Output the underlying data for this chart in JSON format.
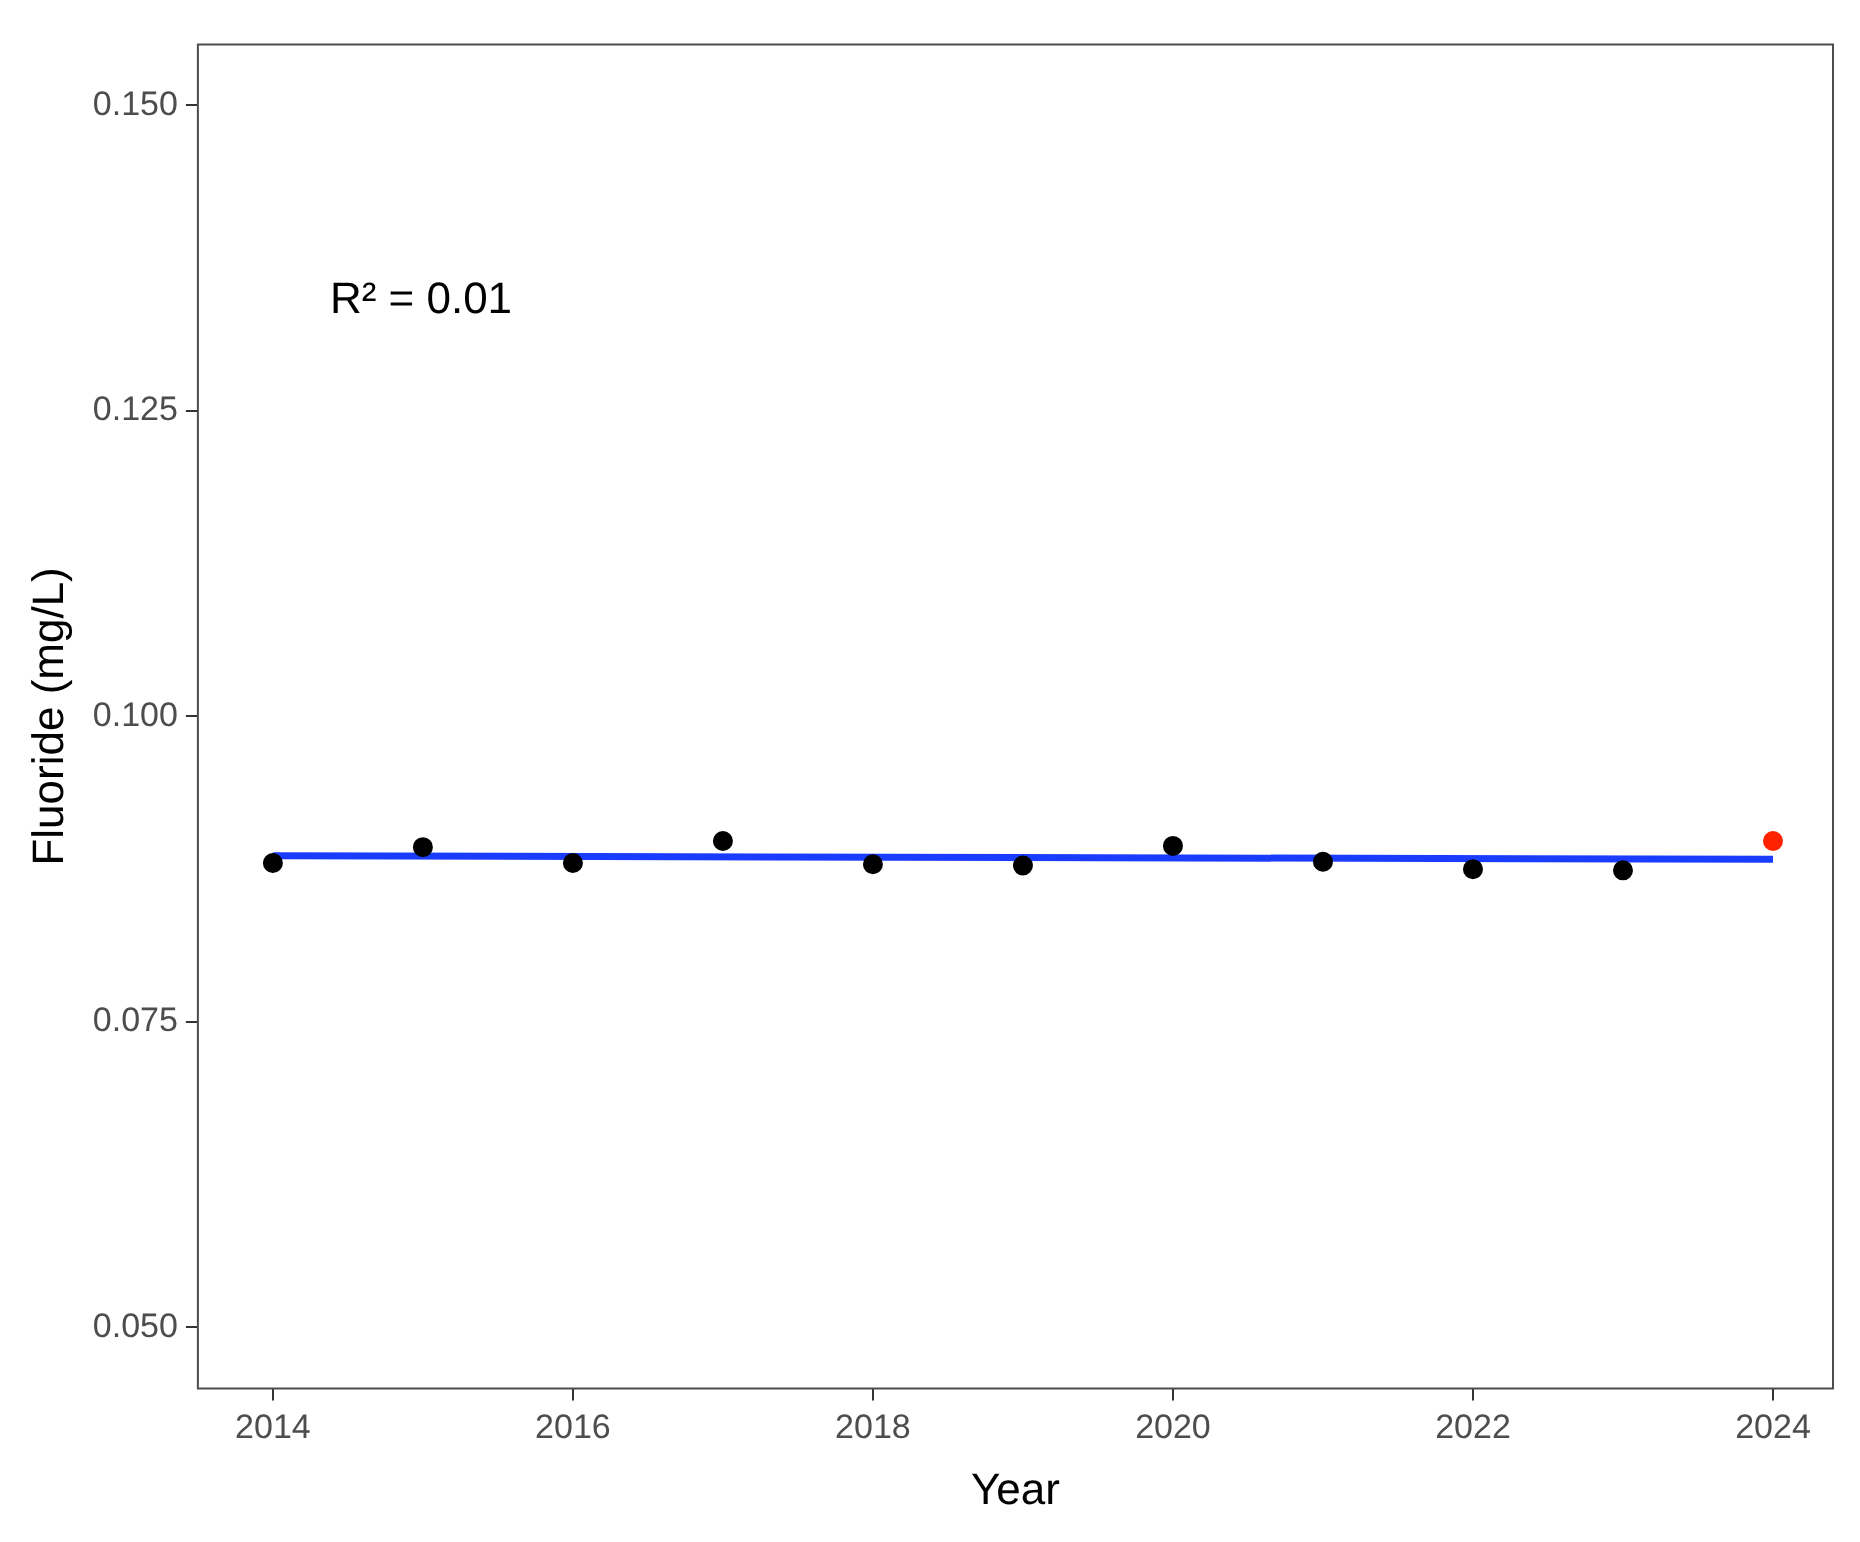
{
  "chart_data": {
    "type": "scatter",
    "xlabel": "Year",
    "ylabel": "Fluoride (mg/L)",
    "annotations": [
      "R² = 0.01"
    ],
    "xlim": [
      2013.5,
      2024.4
    ],
    "ylim": [
      0.045,
      0.155
    ],
    "xticks": [
      2014,
      2016,
      2018,
      2020,
      2022,
      2024
    ],
    "yticks": [
      {
        "value": 0.05,
        "label": "0.050"
      },
      {
        "value": 0.075,
        "label": "0.075"
      },
      {
        "value": 0.1,
        "label": "0.100"
      },
      {
        "value": 0.125,
        "label": "0.125"
      },
      {
        "value": 0.15,
        "label": "0.150"
      }
    ],
    "grid": false,
    "legend": false,
    "series": [
      {
        "marker": "circle",
        "color": "#000000",
        "x": [
          2014,
          2015,
          2016,
          2017,
          2018,
          2019,
          2020,
          2021,
          2022,
          2023
        ],
        "values": [
          0.088,
          0.0893,
          0.088,
          0.0898,
          0.0879,
          0.0878,
          0.0894,
          0.0881,
          0.0875,
          0.0874
        ]
      },
      {
        "marker": "circle",
        "color": "#ff2200",
        "x": [
          2024
        ],
        "values": [
          0.0898
        ]
      },
      {
        "type": "line",
        "marker": "none",
        "color": "#1a3cff",
        "x": [
          2014,
          2024
        ],
        "values": [
          0.0886,
          0.0883
        ]
      }
    ]
  }
}
